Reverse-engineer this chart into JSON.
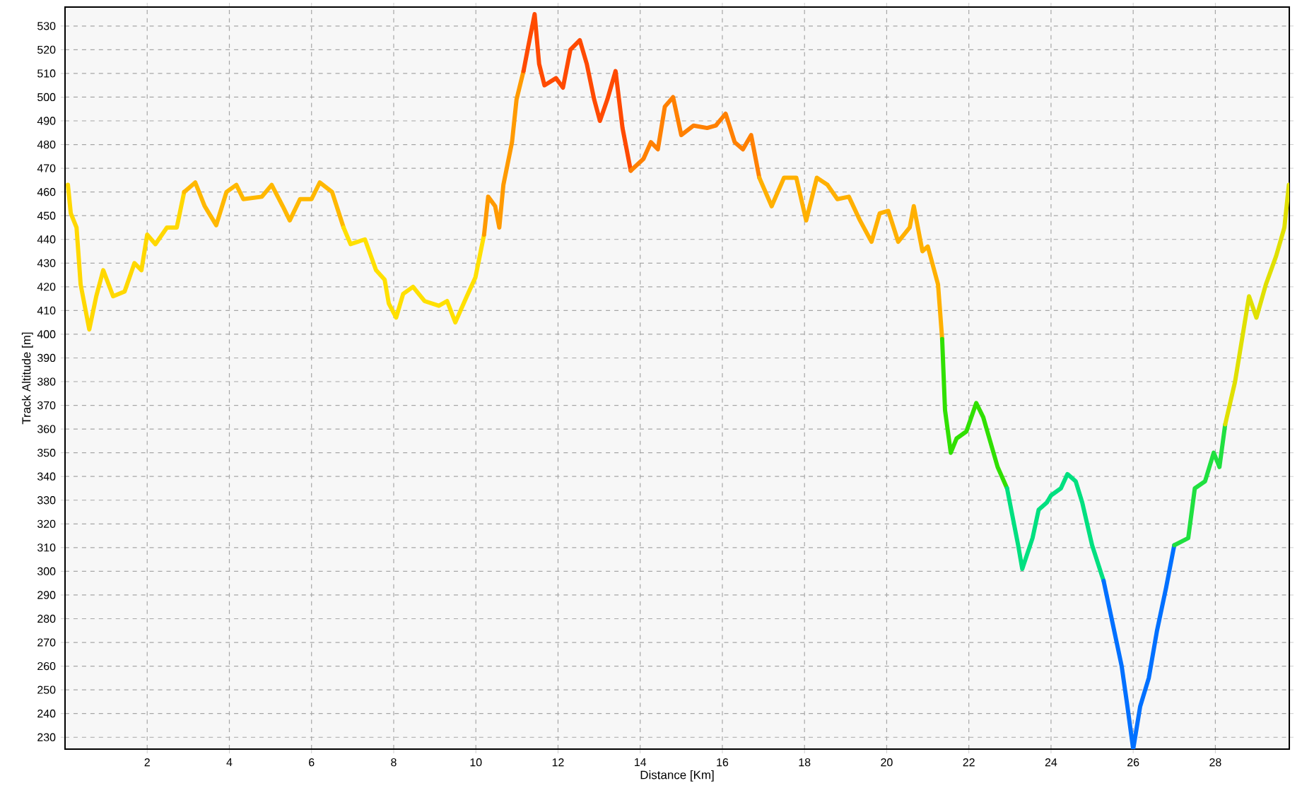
{
  "chart_data": {
    "type": "line",
    "xlabel": "Distance [Km]",
    "ylabel": "Track Altitude [m]",
    "series": [
      {
        "color": "#ffd800",
        "x": [
          0.07,
          0.14,
          0.28,
          0.38,
          0.59,
          0.76,
          0.93,
          1.17,
          1.45,
          1.69,
          1.86,
          2.0,
          2.2,
          2.48,
          2.72,
          2.9
        ],
        "values": [
          463,
          451,
          445,
          421,
          402,
          416,
          427,
          416,
          418,
          430,
          427,
          442,
          438,
          445,
          445,
          460
        ]
      },
      {
        "color": "#ffb800",
        "x": [
          2.9,
          3.17,
          3.4,
          3.68,
          3.93,
          4.17,
          4.34,
          4.79,
          5.03,
          5.3,
          5.47,
          5.72,
          6.0,
          6.2,
          6.5,
          6.78
        ],
        "values": [
          460,
          464,
          454,
          446,
          460,
          463,
          457,
          458,
          463,
          454,
          448,
          457,
          457,
          464,
          460,
          445
        ]
      },
      {
        "color": "#ffe000",
        "x": [
          6.78,
          6.95,
          7.3,
          7.57,
          7.78,
          7.88,
          8.06,
          8.23,
          8.47,
          8.75,
          9.1,
          9.3,
          9.5,
          9.78,
          9.99,
          10.2
        ],
        "values": [
          445,
          438,
          440,
          427,
          423,
          413,
          407,
          417,
          420,
          414,
          412,
          414,
          405,
          416,
          424,
          442
        ]
      },
      {
        "color": "#ff9a00",
        "x": [
          10.2,
          10.3,
          10.47,
          10.57,
          10.67,
          10.88,
          10.99,
          11.16
        ],
        "values": [
          442,
          458,
          454,
          445,
          463,
          481,
          499,
          511
        ]
      },
      {
        "color": "#ff4a00",
        "x": [
          11.16,
          11.26,
          11.43,
          11.54,
          11.67,
          11.95,
          12.12,
          12.3,
          12.53,
          12.7,
          12.88,
          13.02,
          13.2,
          13.4,
          13.57,
          13.77
        ],
        "values": [
          511,
          520,
          535,
          514,
          505,
          508,
          504,
          520,
          524,
          514,
          499,
          490,
          499,
          511,
          487,
          469
        ]
      },
      {
        "color": "#ff8000",
        "x": [
          13.77,
          14.08,
          14.26,
          14.43,
          14.6,
          14.8,
          15.0,
          15.3,
          15.63,
          15.84,
          16.08,
          16.3,
          16.5,
          16.7,
          16.9
        ],
        "values": [
          469,
          474,
          481,
          478,
          496,
          500,
          484,
          488,
          487,
          488,
          493,
          481,
          478,
          484,
          466
        ]
      },
      {
        "color": "#ffb000",
        "x": [
          16.9,
          17.2,
          17.5,
          17.8,
          18.04,
          18.3,
          18.56,
          18.8,
          19.08,
          19.35,
          19.63,
          19.83,
          20.04,
          20.28,
          20.56,
          20.66,
          20.87,
          21.0,
          21.25,
          21.35
        ],
        "values": [
          466,
          454,
          466,
          466,
          448,
          466,
          463,
          457,
          458,
          448,
          439,
          451,
          452,
          439,
          445,
          454,
          435,
          437,
          421,
          398
        ]
      },
      {
        "color": "#30e000",
        "x": [
          21.35,
          21.42,
          21.56,
          21.7,
          21.94,
          22.18,
          22.35,
          22.7,
          22.93
        ],
        "values": [
          398,
          368,
          350,
          356,
          359,
          371,
          365,
          344,
          335
        ]
      },
      {
        "color": "#00e080",
        "x": [
          22.93,
          23.2,
          23.3,
          23.55,
          23.7,
          23.9,
          24.0,
          24.24,
          24.4,
          24.6,
          24.76,
          25.0,
          25.28
        ],
        "values": [
          335,
          311,
          301,
          314,
          326,
          329,
          332,
          335,
          341,
          338,
          329,
          311,
          296
        ]
      },
      {
        "color": "#0070ff",
        "x": [
          25.28,
          25.5,
          25.72,
          25.86,
          26.0,
          26.17,
          26.38,
          26.58,
          26.8,
          27.0
        ],
        "values": [
          296,
          278,
          260,
          243,
          225,
          243,
          255,
          275,
          293,
          311
        ]
      },
      {
        "color": "#20e040",
        "x": [
          27.0,
          27.34,
          27.5,
          27.75,
          27.96,
          28.1,
          28.24
        ],
        "values": [
          311,
          314,
          335,
          338,
          350,
          344,
          362
        ]
      },
      {
        "color": "#e0e000",
        "x": [
          28.24,
          28.48,
          28.65,
          28.82,
          29.0,
          29.23,
          29.48,
          29.68,
          29.79
        ],
        "values": [
          362,
          380,
          398,
          416,
          407,
          421,
          433,
          445,
          463
        ]
      }
    ],
    "xlim": [
      0,
      29.8
    ],
    "ylim": [
      225,
      538
    ],
    "xticks": [
      2,
      4,
      6,
      8,
      10,
      12,
      14,
      16,
      18,
      20,
      22,
      24,
      26,
      28
    ],
    "yticks": [
      230,
      240,
      250,
      260,
      270,
      280,
      290,
      300,
      310,
      320,
      330,
      340,
      350,
      360,
      370,
      380,
      390,
      400,
      410,
      420,
      430,
      440,
      450,
      460,
      470,
      480,
      490,
      500,
      510,
      520,
      530
    ],
    "grid": true,
    "line_style": "solid"
  }
}
